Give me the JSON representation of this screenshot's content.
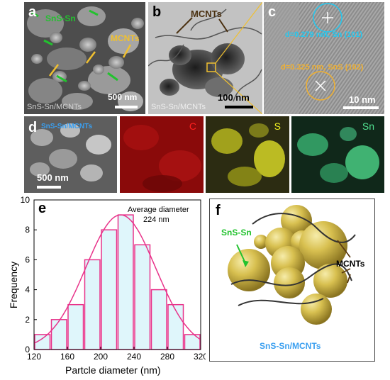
{
  "panel_a": {
    "label": "a",
    "sns_sn": "SnS-Sn",
    "mcnts": "MCNTs",
    "scale": "500 nm",
    "caption": "SnS-Sn/MCNTs"
  },
  "panel_b": {
    "label": "b",
    "mcnts": "MCNTs",
    "scale": "100 nm",
    "caption": "SnS-Sn/MCNTs"
  },
  "panel_c": {
    "label": "c",
    "d_sn": "d=0.279 nm, Sn (101)",
    "d_sns": "d=0.325 nm, SnS (102)",
    "scale": "10 nm"
  },
  "panel_d": {
    "label": "d",
    "caption": "SnS-Sn/MCNTs",
    "scale": "500 nm",
    "maps": [
      "C",
      "S",
      "Sn"
    ]
  },
  "panel_e": {
    "label": "e",
    "annotation_line1": "Average diameter",
    "annotation_line2": "224 nm",
    "chart_data": {
      "type": "bar",
      "xlabel": "Partcle diameter (nm)",
      "ylabel": "Frequency",
      "bin_edges": [
        120,
        140,
        160,
        180,
        200,
        220,
        240,
        260,
        280,
        300,
        320
      ],
      "values": [
        1,
        2,
        3,
        6,
        8,
        9,
        7,
        4,
        3,
        1
      ],
      "xlim": [
        120,
        320
      ],
      "ylim": [
        0,
        10
      ],
      "xticks": [
        120,
        160,
        200,
        240,
        280,
        320
      ],
      "yticks": [
        0,
        2,
        4,
        6,
        8,
        10
      ],
      "fit": {
        "type": "gaussian",
        "mean": 224,
        "sigma": 42,
        "peak": 9
      },
      "colors": {
        "bar_fill": "#dff6fb",
        "bar_edge": "#e8338a",
        "fit_line": "#e8338a"
      }
    }
  },
  "panel_f": {
    "label": "f",
    "sns_sn": "SnS-Sn",
    "mcnts": "MCNTs",
    "caption": "SnS-Sn/MCNTs"
  },
  "colors": {
    "green": "#22c22e",
    "yellow_label": "#f0c030",
    "tem_label": "#4a3010",
    "cyan": "#22c8f0",
    "orange": "#f0b030",
    "map_c": "#ff2020",
    "map_s": "#f0f020",
    "map_sn": "#50e090",
    "caption_blue": "#3a9ff0",
    "sphere": "#d8c050"
  }
}
